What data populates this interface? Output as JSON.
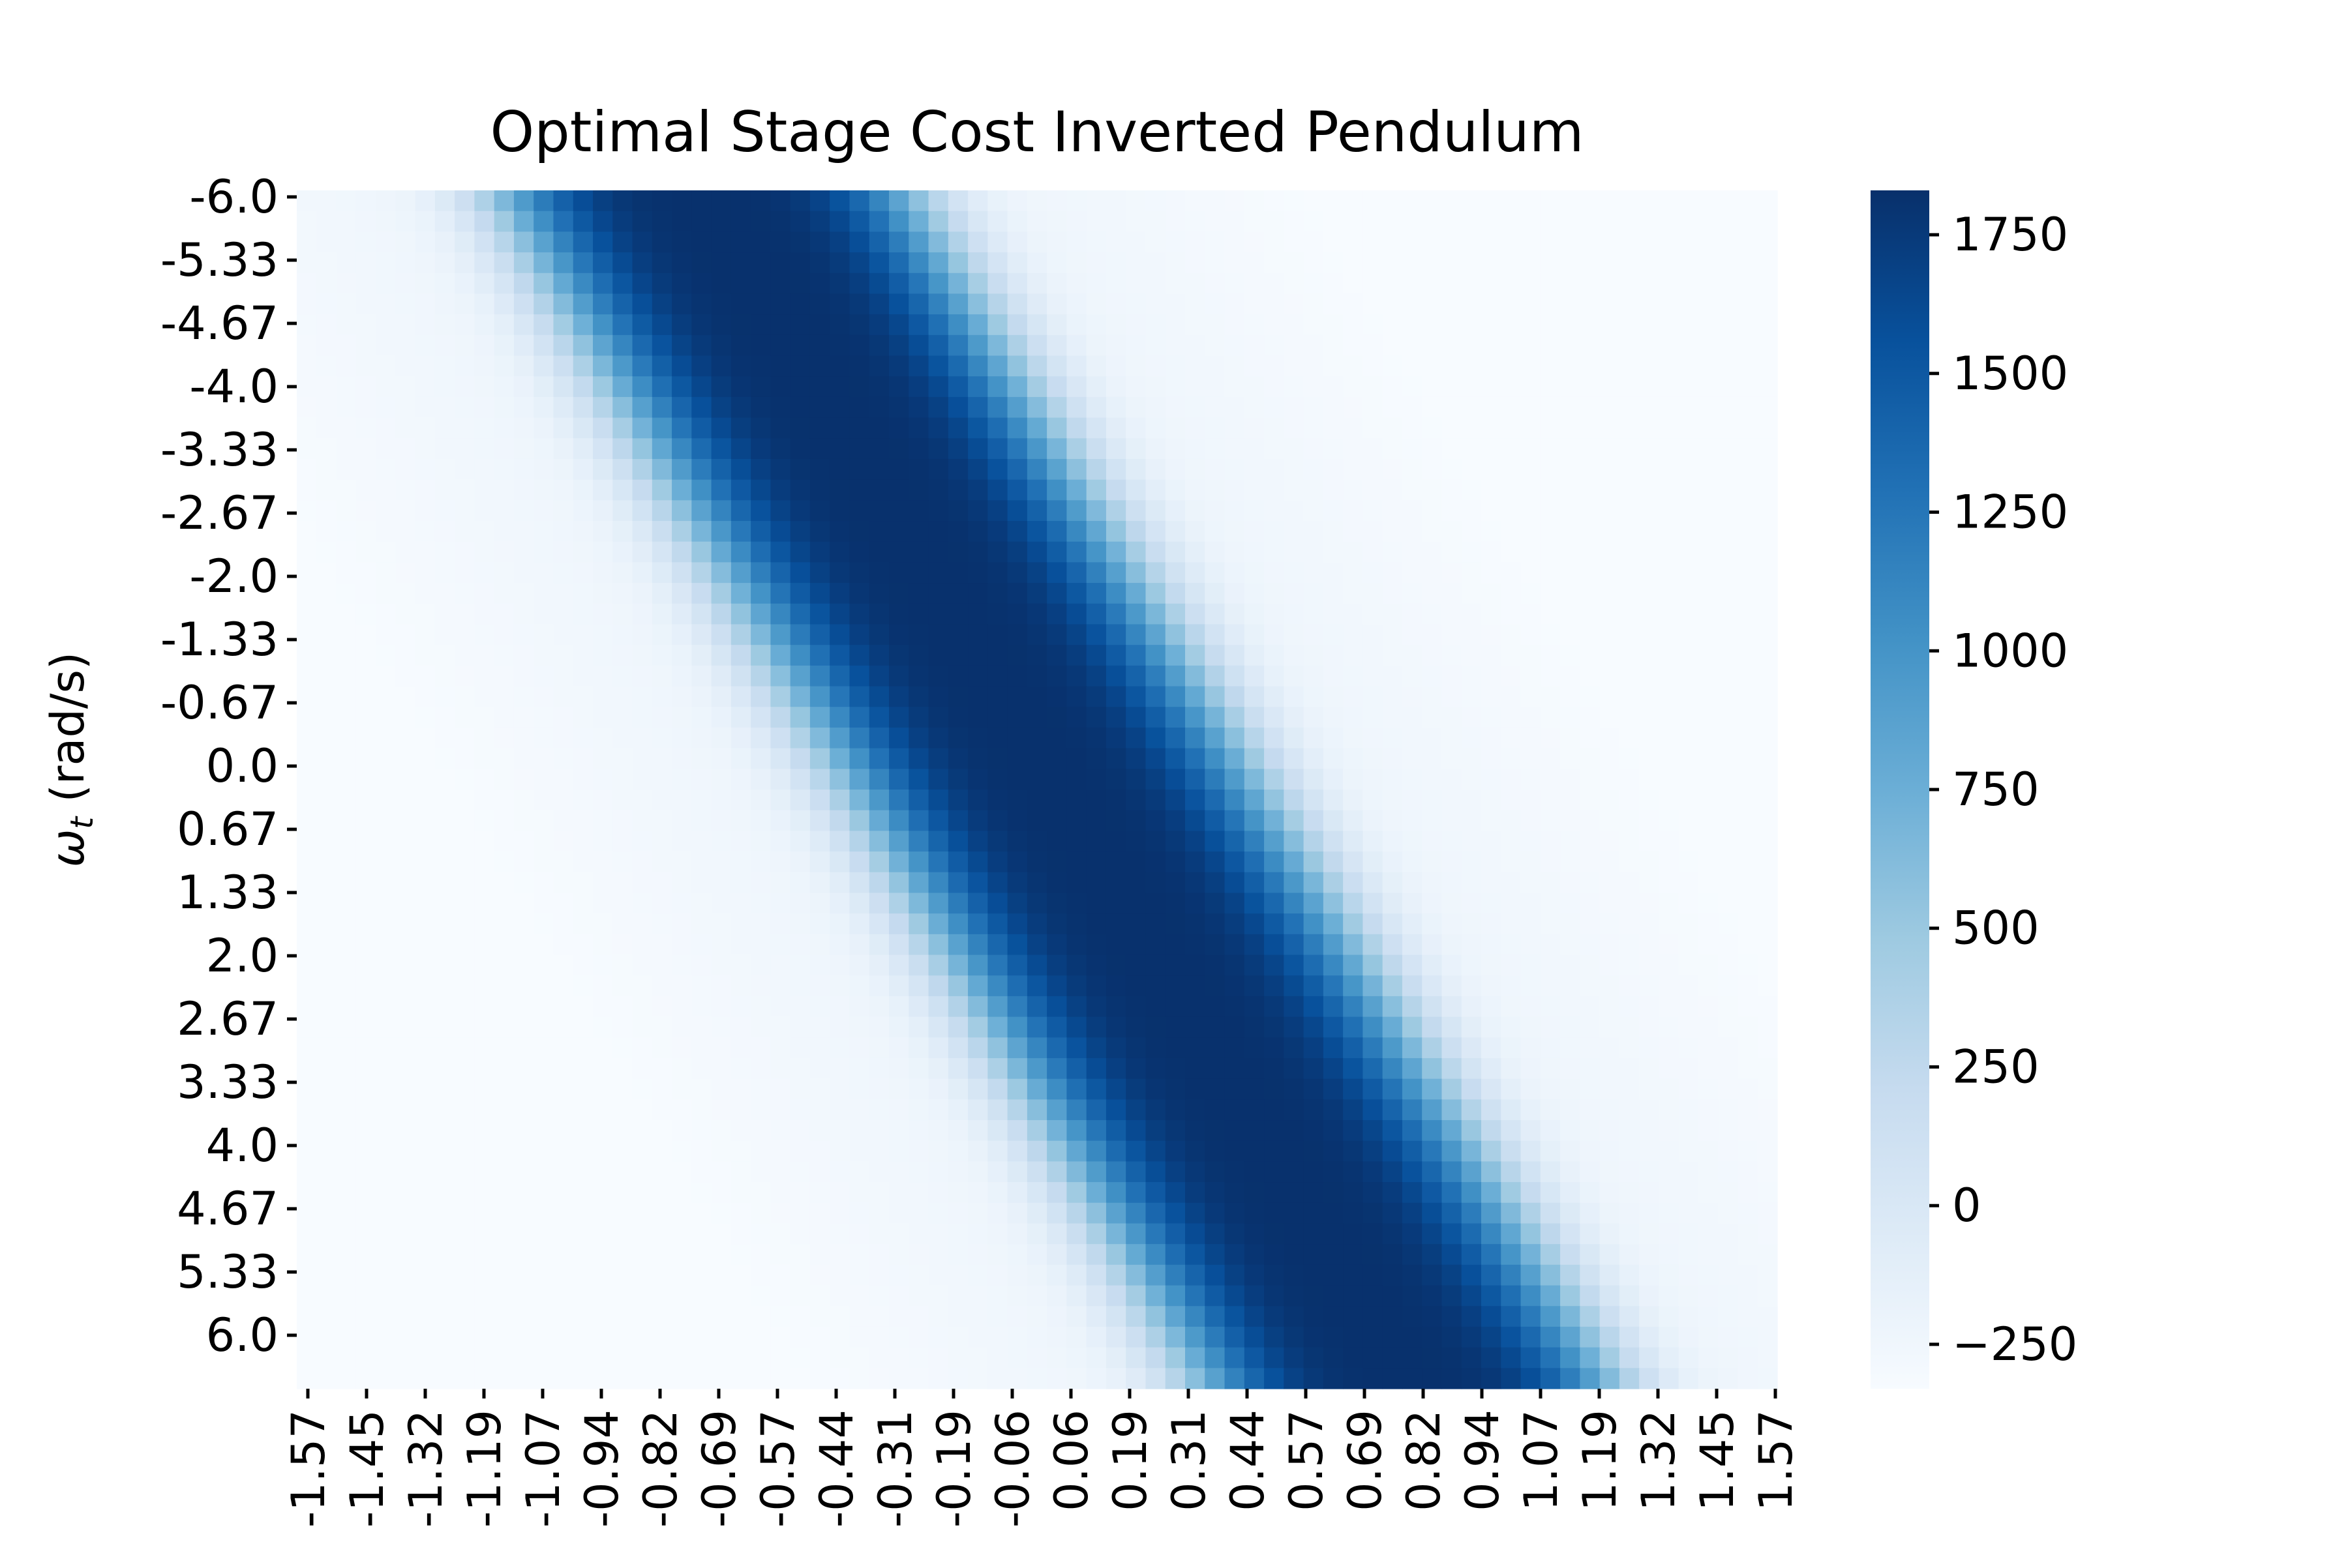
{
  "chart_data": {
    "type": "heatmap",
    "title": "Optimal Stage Cost Inverted Pendulum",
    "xlabel": "",
    "ylabel": "ω_t (rad/s)",
    "ylabel_main": "ω",
    "ylabel_sub": "t",
    "ylabel_unit": " (rad/s)",
    "x_ticks": [
      "-1.57",
      "-1.45",
      "-1.32",
      "-1.19",
      "-1.07",
      "-0.94",
      "-0.82",
      "-0.69",
      "-0.57",
      "-0.44",
      "-0.31",
      "-0.19",
      "-0.06",
      "0.06",
      "0.19",
      "0.31",
      "0.44",
      "0.57",
      "0.69",
      "0.82",
      "0.94",
      "1.07",
      "1.19",
      "1.32",
      "1.45",
      "1.57"
    ],
    "y_ticks": [
      "-6.0",
      "-5.33",
      "-4.67",
      "-4.0",
      "-3.33",
      "-2.67",
      "-2.0",
      "-1.33",
      "-0.67",
      "0.0",
      "0.67",
      "1.33",
      "2.0",
      "2.67",
      "3.33",
      "4.0",
      "4.67",
      "5.33",
      "6.0"
    ],
    "x_range": [
      -1.57,
      1.57
    ],
    "y_range": [
      -6.0,
      6.0
    ],
    "grid_cols": 75,
    "grid_rows": 58,
    "value_model": {
      "description": "Cost is high along a diagonal band where angle and angular velocity have the same sign, low elsewhere.",
      "band_slope_rad_per_rad_s": 0.125,
      "band_center_offset_rad": 0.04,
      "band_halfwidth_rad": 0.45,
      "peak_value": 1820,
      "floor_value": -150,
      "outer_floor_value": -330
    },
    "colorbar": {
      "vmin": -330,
      "vmax": 1830,
      "ticks": [
        -250,
        0,
        250,
        500,
        750,
        1000,
        1250,
        1500,
        1750
      ],
      "tick_labels": [
        "−250",
        "0",
        "250",
        "500",
        "750",
        "1000",
        "1250",
        "1500",
        "1750"
      ]
    },
    "colormap": "Blues",
    "colormap_stops": [
      "#f7fbff",
      "#deebf7",
      "#c6dbef",
      "#9ecae1",
      "#6baed6",
      "#4292c6",
      "#2171b5",
      "#08519c",
      "#08306b"
    ],
    "legend": "colorbar-right",
    "grid": false
  }
}
